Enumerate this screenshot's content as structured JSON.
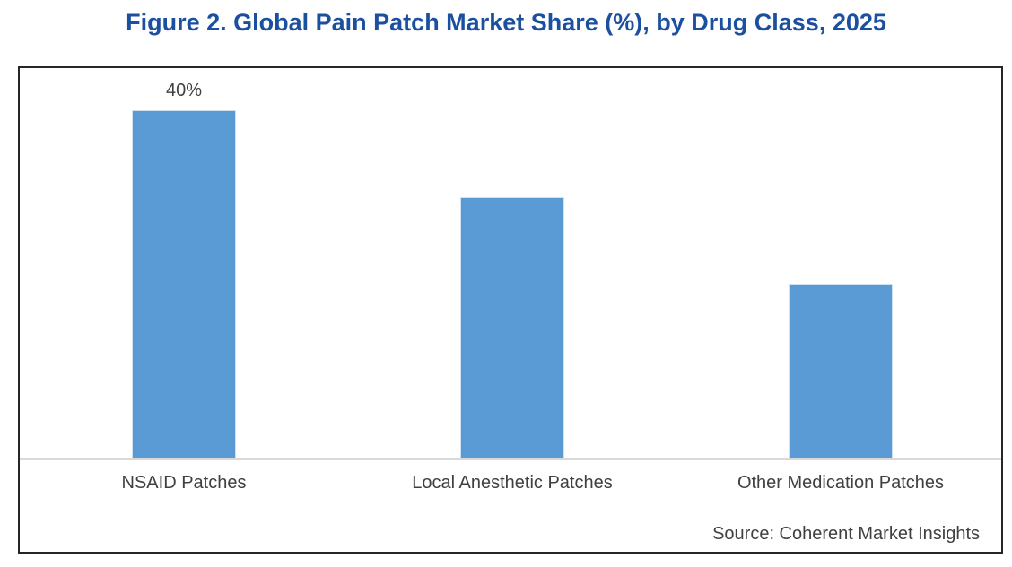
{
  "title": "Figure 2. Global Pain Patch Market Share (%), by Drug Class, 2025",
  "source": "Source: Coherent Market Insights",
  "colors": {
    "title_text": "#1B4F9F",
    "bar_fill": "#5B9BD5",
    "axis_line": "#D9D9D9",
    "frame_border": "#262626",
    "label_text": "#404040"
  },
  "chart_data": {
    "type": "bar",
    "title": "Figure 2. Global Pain Patch Market Share (%), by Drug Class, 2025",
    "categories": [
      "NSAID Patches",
      "Local Anesthetic Patches",
      "Other Medication Patches"
    ],
    "values": [
      40,
      30,
      20
    ],
    "unit": "%",
    "data_labels": [
      "40%",
      null,
      null
    ],
    "xlabel": "",
    "ylabel": "",
    "ylim": [
      0,
      45
    ],
    "grid": false,
    "legend": false,
    "y_axis_visible": false,
    "source": "Source: Coherent Market Insights"
  }
}
